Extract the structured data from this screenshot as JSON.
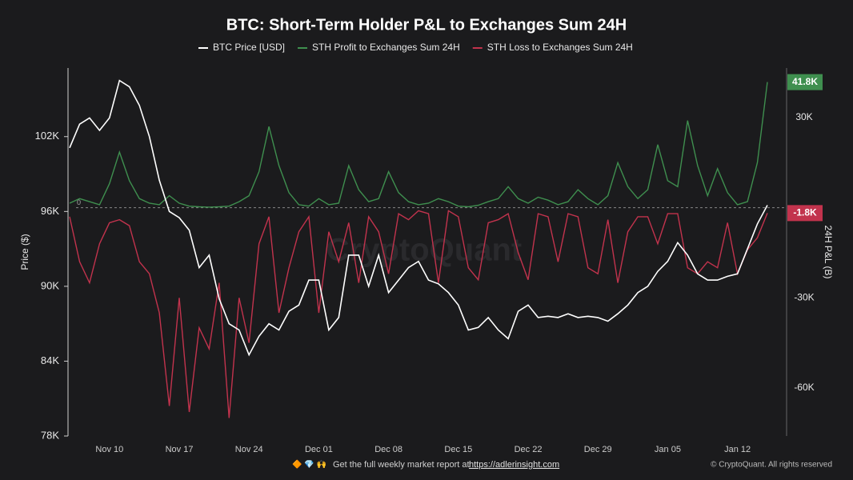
{
  "chart_data": {
    "type": "line",
    "title": "BTC: Short-Term Holder P&L to Exchanges Sum 24H",
    "watermark": "CryptoQuant",
    "y_label": "Price ($)",
    "y2_label": "24H P&L (B)",
    "footer_icons": "🔶 💎 🙌",
    "footer_text": "Get the full weekly market report at",
    "footer_link": "https://adlerinsight.com",
    "copyright": "© CryptoQuant. All rights reserved",
    "categories": [
      null,
      null,
      null,
      null,
      "Nov 10",
      null,
      null,
      null,
      null,
      null,
      null,
      "Nov 17",
      null,
      null,
      null,
      null,
      null,
      null,
      "Nov 24",
      null,
      null,
      null,
      null,
      null,
      null,
      "Dec 01",
      null,
      null,
      null,
      null,
      null,
      null,
      "Dec 08",
      null,
      null,
      null,
      null,
      null,
      null,
      "Dec 15",
      null,
      null,
      null,
      null,
      null,
      null,
      "Dec 22",
      null,
      null,
      null,
      null,
      null,
      null,
      "Dec 29",
      null,
      null,
      null,
      null,
      null,
      null,
      "Jan 05",
      null,
      null,
      null,
      null,
      null,
      null,
      "Jan 12",
      null,
      null,
      null
    ],
    "ylim": [
      78000,
      107500
    ],
    "yticks": [
      {
        "value": 78000,
        "label": "78K"
      },
      {
        "value": 84000,
        "label": "84K"
      },
      {
        "value": 90000,
        "label": "90K"
      },
      {
        "value": 96000,
        "label": "96K"
      },
      {
        "value": 102000,
        "label": "102K"
      }
    ],
    "y2lim": [
      -76000,
      46500
    ],
    "y2ticks": [
      {
        "value": -60000,
        "label": "-60K"
      },
      {
        "value": -30000,
        "label": "-30K"
      },
      0,
      {
        "value": 30000,
        "label": "30K"
      }
    ],
    "series": [
      {
        "name": "BTC Price [USD]",
        "color": "#ffffff",
        "values": [
          101100,
          103000,
          103500,
          102500,
          103500,
          106500,
          106000,
          104500,
          102000,
          98500,
          96000,
          95500,
          94500,
          91500,
          92500,
          89000,
          87000,
          86500,
          84500,
          86000,
          87000,
          86500,
          88000,
          88500,
          90500,
          90500,
          86500,
          87500,
          92500,
          92500,
          90000,
          92500,
          89500,
          90500,
          91500,
          92000,
          90500,
          90200,
          89500,
          88500,
          86500,
          86700,
          87500,
          86500,
          85800,
          88000,
          88500,
          87500,
          87600,
          87500,
          87800,
          87500,
          87600,
          87500,
          87200,
          87800,
          88500,
          89500,
          90000,
          91200,
          92000,
          93500,
          92500,
          91000,
          90500,
          90500,
          90800,
          91000,
          93000,
          95000,
          96500
        ]
      },
      {
        "name": "STH Profit to Exchanges Sum 24H",
        "color": "#3f8f4f",
        "axis": "y2",
        "last_value_label": "41.8K",
        "values": [
          1500,
          3000,
          2000,
          1000,
          8000,
          18500,
          9000,
          3000,
          1500,
          1000,
          4000,
          1500,
          500,
          300,
          200,
          300,
          500,
          2000,
          4000,
          12000,
          27000,
          14000,
          5000,
          1000,
          500,
          3000,
          1000,
          1500,
          14000,
          6000,
          2000,
          3000,
          12000,
          5000,
          2000,
          1000,
          1500,
          3000,
          2000,
          500,
          300,
          800,
          2000,
          3000,
          7000,
          3000,
          1500,
          3500,
          2500,
          1000,
          2000,
          6000,
          3000,
          1000,
          4000,
          15000,
          7000,
          3000,
          6000,
          21000,
          9000,
          7000,
          29000,
          14000,
          4000,
          13000,
          5000,
          1000,
          2000,
          15000,
          41800
        ]
      },
      {
        "name": "STH Loss to Exchanges Sum 24H",
        "color": "#c2334d",
        "axis": "y2",
        "last_value_label": "-1.8K",
        "values": [
          -3000,
          -18000,
          -25000,
          -12000,
          -5000,
          -4000,
          -6000,
          -18000,
          -22000,
          -35000,
          -66000,
          -30000,
          -68000,
          -40000,
          -47000,
          -25000,
          -70000,
          -30000,
          -45000,
          -12000,
          -3000,
          -35000,
          -20000,
          -8000,
          -3000,
          -35000,
          -8000,
          -18000,
          -5000,
          -25000,
          -3000,
          -8000,
          -22000,
          -2000,
          -4000,
          -1000,
          -2000,
          -25000,
          -1000,
          -3000,
          -20000,
          -24000,
          -5000,
          -4000,
          -2000,
          -15000,
          -24000,
          -2000,
          -3000,
          -18000,
          -2000,
          -3000,
          -20000,
          -22000,
          -4000,
          -25000,
          -8000,
          -3000,
          -3000,
          -12000,
          -2000,
          -2000,
          -20000,
          -22000,
          -18000,
          -20000,
          -5000,
          -22000,
          -14000,
          -10000,
          -1800
        ]
      }
    ]
  }
}
